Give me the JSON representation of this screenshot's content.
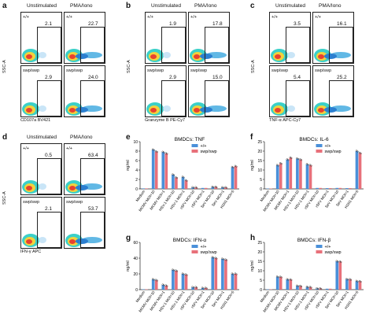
{
  "panel_labels": [
    "a",
    "b",
    "c",
    "d",
    "e",
    "f",
    "g",
    "h"
  ],
  "flow": {
    "col_headers": [
      "Unstimulated",
      "PMA/Iono"
    ],
    "genotypes": [
      "+/+",
      "swp/swp"
    ],
    "y_axis": "SSC-A",
    "panels": [
      {
        "xlabel": "CD107a BV421",
        "gate_values": [
          [
            "2.1",
            "22.7"
          ],
          [
            "2.9",
            "24.0"
          ]
        ]
      },
      {
        "xlabel": "Granzyme B PE-Cy7",
        "gate_values": [
          [
            "1.9",
            "17.8"
          ],
          [
            "2.9",
            "15.0"
          ]
        ]
      },
      {
        "xlabel": "TNF-α APC-Cy7",
        "gate_values": [
          [
            "3.5",
            "16.1"
          ],
          [
            "5.4",
            "25.2"
          ]
        ]
      },
      {
        "xlabel": "IFN-γ APC",
        "gate_values": [
          [
            "0.5",
            "63.4"
          ],
          [
            "2.1",
            "53.7"
          ]
        ]
      }
    ]
  },
  "chart_data": [
    {
      "type": "bar",
      "title": "BMDCs: TNF",
      "ylabel": "ng/ml",
      "ylim": [
        0,
        10
      ],
      "yticks": [
        0,
        2,
        4,
        6,
        8,
        10
      ],
      "categories": [
        "Medium",
        "MCMV MOI=10",
        "MCMV MOI=1",
        "HSV-1 MOI=10",
        "HSV-1 MOI=1",
        "rSFV MOI=10",
        "rSFV MOI=1",
        "SeV MOI=10",
        "SeV MOI=1",
        "H1N1 MOI=5"
      ],
      "series": [
        {
          "name": "+/+",
          "color": "#4a90d9",
          "values": [
            0.1,
            8.3,
            7.8,
            3.0,
            2.5,
            0.3,
            0.2,
            0.4,
            0.3,
            4.6
          ]
        },
        {
          "name": "swp/swp",
          "color": "#e8707a",
          "values": [
            0.1,
            7.9,
            7.5,
            2.4,
            1.8,
            0.3,
            0.2,
            0.4,
            0.3,
            4.8
          ]
        }
      ]
    },
    {
      "type": "bar",
      "title": "BMDCs: IL-6",
      "ylabel": "ng/ml",
      "ylim": [
        0,
        25
      ],
      "yticks": [
        0,
        5,
        10,
        15,
        20,
        25
      ],
      "categories": [
        "Medium",
        "MCMV MOI=10",
        "MCMV MOI=1",
        "HSV-1 MOI=10",
        "HSV-1 MOI=1",
        "rSFV MOI=10",
        "rSFV MOI=1",
        "SeV MOI=10",
        "SeV MOI=1",
        "H1N1 MOI=5"
      ],
      "series": [
        {
          "name": "+/+",
          "color": "#4a90d9",
          "values": [
            0.2,
            12.5,
            15.5,
            16.0,
            13.0,
            0.5,
            0.4,
            0.5,
            0.4,
            20.0
          ]
        },
        {
          "name": "swp/swp",
          "color": "#e8707a",
          "values": [
            0.2,
            13.5,
            16.5,
            15.5,
            12.5,
            0.5,
            0.4,
            0.5,
            0.4,
            19.0
          ]
        }
      ]
    },
    {
      "type": "bar",
      "title": "BMDCs: IFN-α",
      "ylabel": "ng/ml",
      "ylim": [
        0,
        60
      ],
      "yticks": [
        0,
        20,
        40,
        60
      ],
      "categories": [
        "Medium",
        "MCMV MOI=10",
        "MCMV MOI=1",
        "HSV-1 MOI=10",
        "HSV-1 MOI=1",
        "rSFV MOI=10",
        "rSFV MOI=1",
        "SeV MOI=10",
        "SeV MOI=1",
        "H1N1 MOI=5"
      ],
      "series": [
        {
          "name": "+/+",
          "color": "#4a90d9",
          "values": [
            0.5,
            13,
            6,
            25,
            20,
            3,
            2,
            41,
            39,
            20
          ]
        },
        {
          "name": "swp/swp",
          "color": "#e8707a",
          "values": [
            0.5,
            12,
            5,
            24,
            19,
            3,
            2,
            40,
            38,
            20
          ]
        }
      ]
    },
    {
      "type": "bar",
      "title": "BMDCs: IFN-β",
      "ylabel": "ng/ml",
      "ylim": [
        0,
        25
      ],
      "yticks": [
        0,
        5,
        10,
        15,
        20,
        25
      ],
      "categories": [
        "Medium",
        "MCMV MOI=10",
        "MCMV MOI=1",
        "HSV-1 MOI=10",
        "HSV-1 MOI=1",
        "rSFV MOI=10",
        "rSFV MOI=1",
        "SeV MOI=10",
        "SeV MOI=1",
        "H1N1 MOI=5"
      ],
      "series": [
        {
          "name": "+/+",
          "color": "#4a90d9",
          "values": [
            0.2,
            6.8,
            5.4,
            2.0,
            1.4,
            0.6,
            0.5,
            15.0,
            5.5,
            4.5
          ]
        },
        {
          "name": "swp/swp",
          "color": "#e8707a",
          "values": [
            0.2,
            6.7,
            5.3,
            1.9,
            1.3,
            0.6,
            0.5,
            14.8,
            5.4,
            4.4
          ]
        }
      ]
    }
  ]
}
